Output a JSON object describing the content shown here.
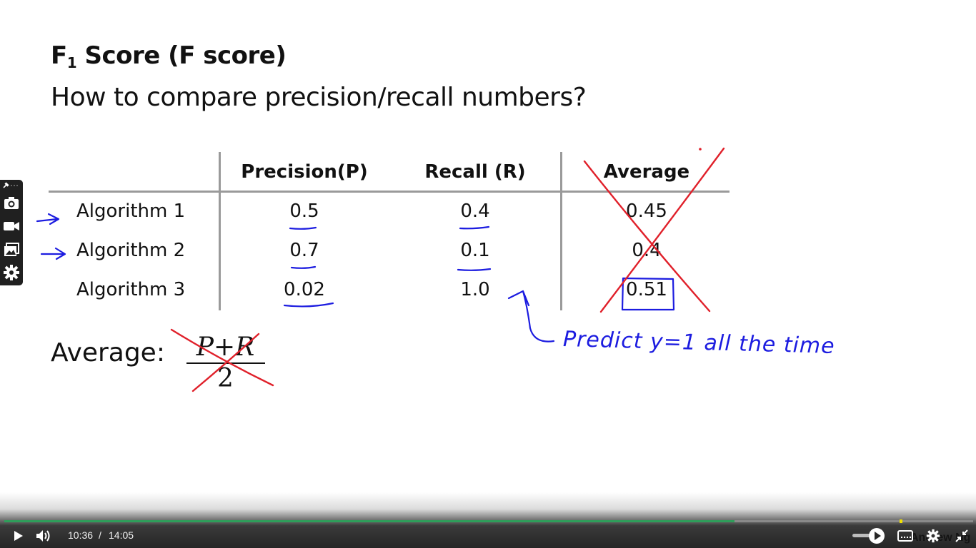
{
  "slide": {
    "title_main": "F",
    "title_sub": "1",
    "title_rest": " Score (F score)",
    "subtitle": "How to compare precision/recall numbers?",
    "table": {
      "headers": [
        "Precision(P)",
        "Recall (R)",
        "Average"
      ],
      "rows": [
        {
          "label": "Algorithm 1",
          "precision": "0.5",
          "recall": "0.4",
          "average": "0.45"
        },
        {
          "label": "Algorithm 2",
          "precision": "0.7",
          "recall": "0.1",
          "average": "0.4"
        },
        {
          "label": "Algorithm 3",
          "precision": "0.02",
          "recall": "1.0",
          "average": "0.51"
        }
      ]
    },
    "average_label": "Average:",
    "formula_numerator": "P+R",
    "formula_denominator": "2",
    "annotation": "Predict y=1 all the time",
    "ink_colors": {
      "blue": "#1c1ce0",
      "red": "#e0202a"
    }
  },
  "tools": {
    "icons": [
      "pin-icon",
      "camera-icon",
      "video-icon",
      "gallery-icon",
      "gear-icon"
    ]
  },
  "player": {
    "current_time": "10:36",
    "separator": "/",
    "duration": "14:05",
    "progress_fraction": 0.754,
    "buffered_marker_fraction": 0.924,
    "progress_color": "#2e9e5a",
    "watermark": "Andrew Ng",
    "icons": [
      "play-icon",
      "volume-icon",
      "speed-icon",
      "captions-icon",
      "settings-icon",
      "exit-fullscreen-icon"
    ]
  }
}
